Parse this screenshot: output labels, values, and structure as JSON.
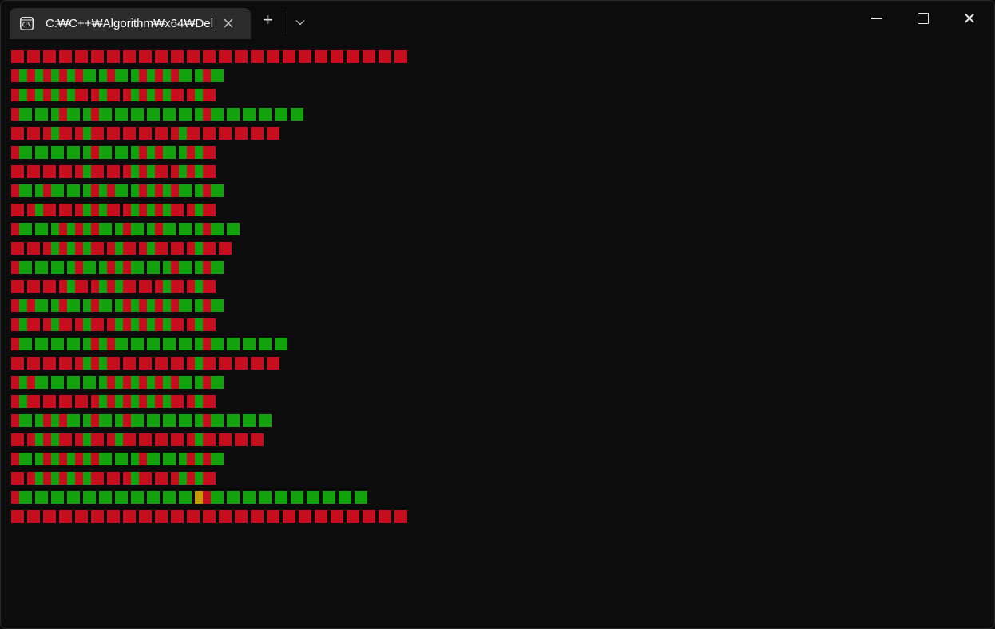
{
  "tab": {
    "title": "C:₩C++₩Algorithm₩x64₩Del",
    "icon": "console-icon",
    "close_icon": "close-icon"
  },
  "toolbar": {
    "new_tab_icon": "+",
    "dropdown_icon": "⌵"
  },
  "window_controls": {
    "minimize": "minimize-icon",
    "maximize": "maximize-icon",
    "close": "✕"
  },
  "colors": {
    "R": "#c50f1f",
    "G": "#13a10e",
    "Y": "#c19c00",
    "background": "#0c0c0c"
  },
  "maze_rows": [
    "R.R.R.R.R.R.R.R.R.R.R.R.R.R.R.R.R.R.R.R.R.R.R.R.R",
    "RGRGRGRGRG.GRG.GRGRGRG.GRG",
    "RGRGRGRGR.RGR.RGRGRGR.RGR",
    "RG.G.GRG.GRG.G.G.G.G.G.GRG.G.G.G.G.G",
    "R.R.RGR.RGR.R.R.R.R.RGR.R.R.R.R.R",
    "RG.G.G.G.GRG.G.GRGRG.GRGR",
    "R.R.R.R.RGR.R.RGRGR.RGRGR",
    "RG.GRG.G.GRGRG.GRGRGRG.GRG",
    "R.RGR.R.RGRGR.RGRGRGR.RGR",
    "RG.G.GRGRGRG.GRG.GRG.G.GRG.G",
    "R.R.RGRGRGR.RGR.RGR.R.RGR.R",
    "RG.G.G.GRG.GRGRG.G.GRG.GRG",
    "R.R.R.RGR.RGRGR.R.RGR.RGR",
    "RGRG.GRG.GRG.GRGRGRGRG.GRG",
    "RGR.RGR.RGR.RGRGRGRGR.RGR",
    "RG.G.G.G.GRGRG.G.G.G.G.GRG.G.G.G.G",
    "R.R.R.R.RGRGR.R.R.R.R.RGR.R.R.R.R",
    "RGRG.G.G.G.GRGRGRGRGRG.GRG",
    "RGR.R.R.R.RGRGRGRGRGR.RGR",
    "RG.GRGRG.GRG.GRG.G.G.G.GRG.G.G.G",
    "R.RGRGR.RGR.RGR.R.R.R.RGR.R.R.R",
    "RG.GRGRGRGRG.G.GRG.G.GRGRG",
    "R.RGRGRGRGR.R.RGR.R.RGRGR",
    "RG.G.G.G.G.G.G.G.G.G.G.YRG.G.G.G.G.G.G.G.G.G",
    "R.R.R.R.R.R.R.R.R.R.R.R.R.R.R.R.R.R.R.R.R.R.R.R.R"
  ]
}
